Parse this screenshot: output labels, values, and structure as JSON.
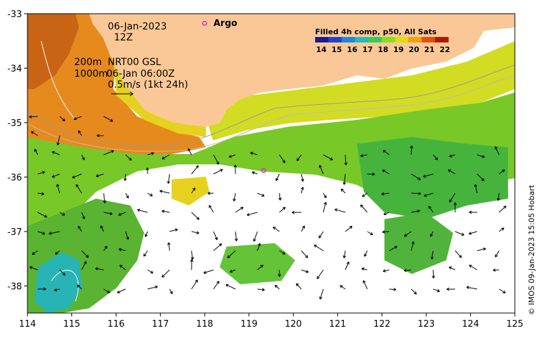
{
  "map": {
    "date": "06-Jan-2023",
    "time": "12Z",
    "isobath_200": "200m",
    "isobath_1000": "1000m",
    "product_code": "NRT00 GSL",
    "current_time": "06-Jan 06:00Z",
    "velocity_scale": "0.5m/s (1kt 24h)",
    "argo_label": "Argo",
    "credit": "© IMOS 09-Jan-2023 15:05 Hobart",
    "colorbar": {
      "title": "Filled 4h comp, p50, All Sats",
      "ticks": [
        "14",
        "15",
        "16",
        "17",
        "18",
        "19",
        "20",
        "21",
        "22"
      ],
      "colors": [
        "#1a1a8c",
        "#2244cc",
        "#1a88dd",
        "#22bbbb",
        "#33cc55",
        "#88dd22",
        "#dddd11",
        "#f0a010",
        "#e05010",
        "#aa1a0a"
      ]
    },
    "x_ticks": [
      "114",
      "115",
      "116",
      "117",
      "118",
      "119",
      "120",
      "121",
      "122",
      "123",
      "124",
      "125"
    ],
    "y_ticks": [
      "-33",
      "-34",
      "-35",
      "-36",
      "-37",
      "-38"
    ],
    "land_color": "#fac896",
    "argo_color": "#e020c8"
  }
}
